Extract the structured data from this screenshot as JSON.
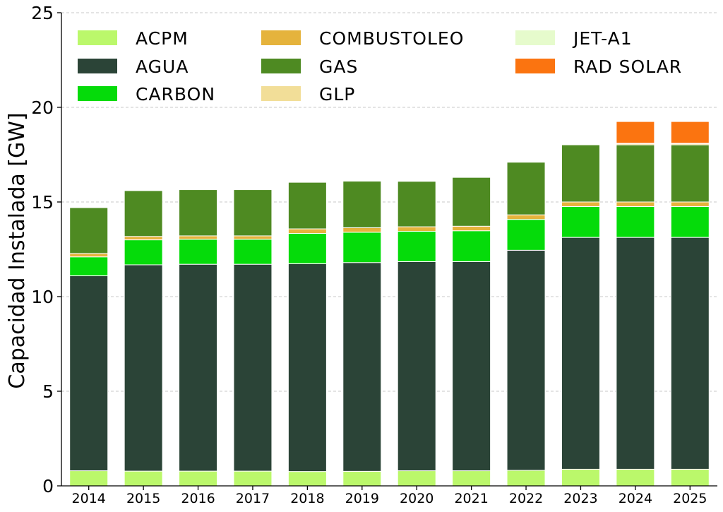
{
  "chart_data": {
    "type": "bar",
    "stacked": true,
    "ylabel": "Capacidad Instalada [GW]",
    "xlabel": "",
    "ylim": [
      0,
      25
    ],
    "yticks": [
      0,
      5,
      10,
      15,
      20,
      25
    ],
    "grid": "y-dashed",
    "legend_position": "top-left, 3 columns",
    "categories": [
      "2014",
      "2015",
      "2016",
      "2017",
      "2018",
      "2019",
      "2020",
      "2021",
      "2022",
      "2023",
      "2024",
      "2025"
    ],
    "series": [
      {
        "name": "ACPM",
        "color": "#bbf86b",
        "values": [
          0.8,
          0.78,
          0.78,
          0.78,
          0.76,
          0.77,
          0.8,
          0.8,
          0.82,
          0.88,
          0.88,
          0.88
        ]
      },
      {
        "name": "AGUA",
        "color": "#2b4437",
        "values": [
          10.3,
          10.9,
          10.93,
          10.93,
          10.98,
          11.03,
          11.05,
          11.05,
          11.63,
          12.25,
          12.25,
          12.25
        ]
      },
      {
        "name": "CARBON",
        "color": "#05db0a",
        "values": [
          1.0,
          1.32,
          1.32,
          1.32,
          1.6,
          1.6,
          1.6,
          1.63,
          1.63,
          1.63,
          1.63,
          1.63
        ]
      },
      {
        "name": "COMBUSTOLEO",
        "color": "#e5b33c",
        "values": [
          0.18,
          0.18,
          0.18,
          0.18,
          0.24,
          0.24,
          0.24,
          0.24,
          0.24,
          0.24,
          0.24,
          0.24
        ]
      },
      {
        "name": "GAS",
        "color": "#4e8a22",
        "values": [
          2.42,
          2.42,
          2.44,
          2.44,
          2.46,
          2.46,
          2.4,
          2.58,
          2.78,
          3.02,
          3.02,
          3.02
        ]
      },
      {
        "name": "GLP",
        "color": "#f2de98",
        "values": [
          0,
          0,
          0,
          0,
          0,
          0,
          0,
          0,
          0,
          0,
          0.06,
          0.06
        ]
      },
      {
        "name": "JET-A1",
        "color": "#e6fbcc",
        "values": [
          0,
          0,
          0,
          0,
          0,
          0,
          0,
          0,
          0,
          0,
          0.02,
          0.02
        ]
      },
      {
        "name": "RAD SOLAR",
        "color": "#fb7410",
        "values": [
          0,
          0,
          0,
          0,
          0,
          0,
          0,
          0,
          0,
          0,
          1.15,
          1.15
        ]
      }
    ]
  }
}
